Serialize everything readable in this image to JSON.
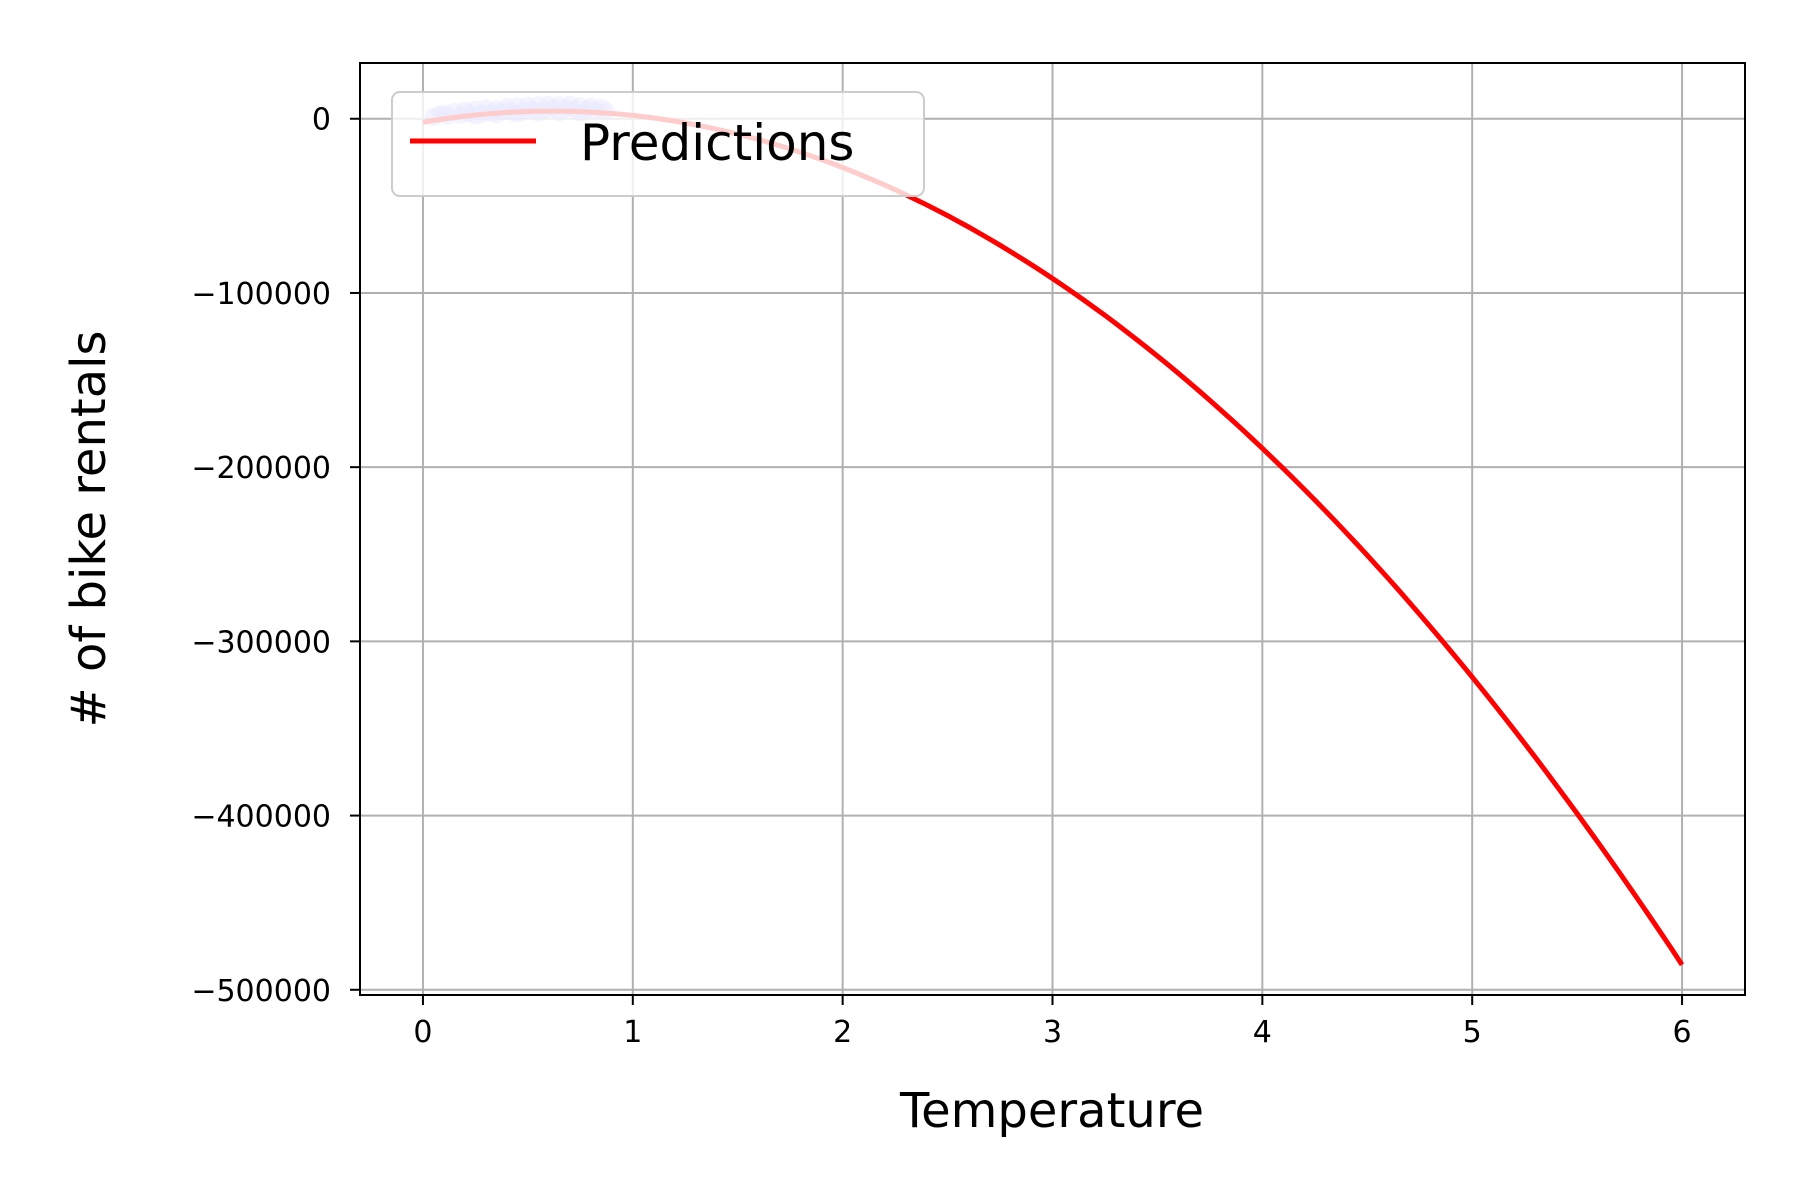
{
  "chart_data": {
    "type": "line",
    "title": "",
    "xlabel": "Temperature",
    "ylabel": "# of bike rentals",
    "xlim": [
      -0.3,
      6.3
    ],
    "ylim": [
      -503000,
      32000
    ],
    "x_ticks": [
      0,
      1,
      2,
      3,
      4,
      5,
      6
    ],
    "x_tick_labels": [
      "0",
      "1",
      "2",
      "3",
      "4",
      "5",
      "6"
    ],
    "y_ticks": [
      0,
      -100000,
      -200000,
      -300000,
      -400000,
      -500000
    ],
    "y_tick_labels": [
      "0",
      "−100000",
      "−200000",
      "−300000",
      "−400000",
      "−500000"
    ],
    "grid": true,
    "legend": {
      "position": "top-left",
      "entries": [
        "Predictions"
      ]
    },
    "series": [
      {
        "name": "Predictions",
        "kind": "line",
        "color": "#ff0000",
        "curve": {
          "a": -16900,
          "b": 20800,
          "c": -2000
        },
        "x_range": [
          0,
          6
        ]
      }
    ],
    "scatter": {
      "color": "#9999ff",
      "points": [
        [
          0.05,
          1000
        ],
        [
          0.08,
          2500
        ],
        [
          0.1,
          3000
        ],
        [
          0.12,
          1800
        ],
        [
          0.15,
          4000
        ],
        [
          0.18,
          2200
        ],
        [
          0.2,
          4800
        ],
        [
          0.22,
          3100
        ],
        [
          0.25,
          5200
        ],
        [
          0.28,
          2800
        ],
        [
          0.3,
          6000
        ],
        [
          0.32,
          3600
        ],
        [
          0.35,
          5500
        ],
        [
          0.38,
          4200
        ],
        [
          0.4,
          6800
        ],
        [
          0.42,
          3900
        ],
        [
          0.45,
          7200
        ],
        [
          0.48,
          4600
        ],
        [
          0.5,
          7500
        ],
        [
          0.52,
          5100
        ],
        [
          0.55,
          7800
        ],
        [
          0.58,
          5400
        ],
        [
          0.6,
          8200
        ],
        [
          0.62,
          5800
        ],
        [
          0.65,
          7900
        ],
        [
          0.68,
          6000
        ],
        [
          0.7,
          8000
        ],
        [
          0.72,
          5600
        ],
        [
          0.75,
          7400
        ],
        [
          0.78,
          5200
        ],
        [
          0.8,
          6800
        ],
        [
          0.82,
          4900
        ],
        [
          0.85,
          6200
        ],
        [
          0.87,
          4500
        ],
        [
          0.35,
          2600
        ],
        [
          0.45,
          3000
        ],
        [
          0.55,
          3500
        ],
        [
          0.65,
          3800
        ],
        [
          0.75,
          3600
        ],
        [
          0.25,
          1800
        ]
      ]
    }
  }
}
